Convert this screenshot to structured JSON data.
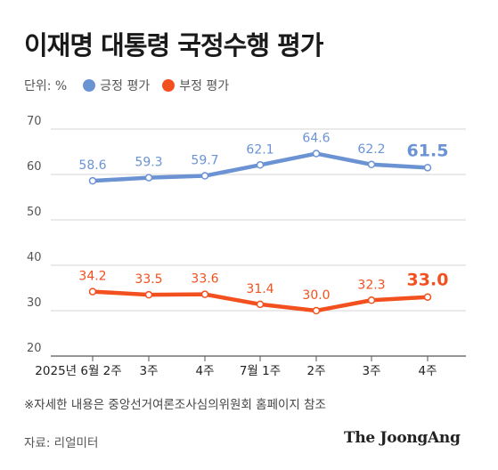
{
  "title": "이재명 대통령 국정수행 평가",
  "unit_label": "단위: %",
  "note": "※자세한 내용은 중앙선거여론조사심의위원회 홈페이지 참조",
  "source": "자료: 리얼미터",
  "brand": "The JoongAng",
  "chart_data": {
    "type": "line",
    "categories": [
      "2025년 6월 2주",
      "3주",
      "4주",
      "7월 1주",
      "2주",
      "3주",
      "4주"
    ],
    "series": [
      {
        "name": "긍정 평가",
        "color": "#6b93d4",
        "values": [
          58.6,
          59.3,
          59.7,
          62.1,
          64.6,
          62.2,
          61.5
        ],
        "labels": [
          "58.6",
          "59.3",
          "59.7",
          "62.1",
          "64.6",
          "62.2",
          "61.5"
        ]
      },
      {
        "name": "부정 평가",
        "color": "#f2501e",
        "values": [
          34.2,
          33.5,
          33.6,
          31.4,
          30.0,
          32.3,
          33.0
        ],
        "labels": [
          "34.2",
          "33.5",
          "33.6",
          "31.4",
          "30.0",
          "32.3",
          "33.0"
        ]
      }
    ],
    "y_ticks": [
      "70",
      "60",
      "50",
      "40",
      "30",
      "20"
    ],
    "ylim": [
      20,
      70
    ],
    "grid": true,
    "legend_position": "top-left"
  }
}
